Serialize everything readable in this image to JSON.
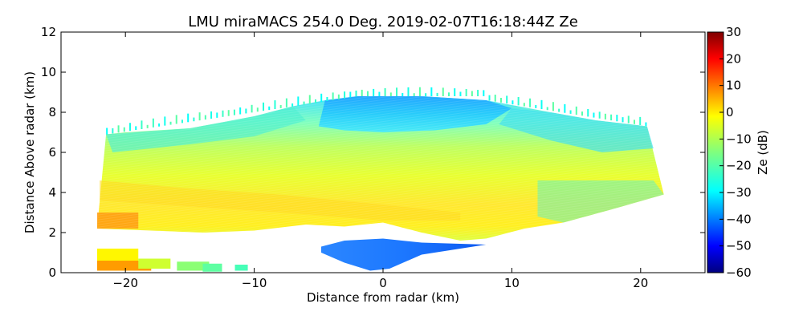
{
  "chart_data": {
    "type": "heatmap",
    "title": "LMU miraMACS 254.0 Deg. 2019-02-07T16:18:44Z  Ze",
    "xlabel": "Distance from radar (km)",
    "ylabel": "Distance Above radar  (km)",
    "xlim": [
      -25,
      25
    ],
    "ylim": [
      0,
      12
    ],
    "xticks": [
      -20,
      -10,
      0,
      10,
      20
    ],
    "xtick_labels": [
      "−20",
      "−10",
      "0",
      "10",
      "20"
    ],
    "yticks": [
      0,
      2,
      4,
      6,
      8,
      10,
      12
    ],
    "ytick_labels": [
      "0",
      "2",
      "4",
      "6",
      "8",
      "10",
      "12"
    ],
    "grid": false,
    "colorbar": {
      "label": "Ze (dB)",
      "range": [
        -60,
        30
      ],
      "colormap": "jet",
      "ticks": [
        30,
        20,
        10,
        0,
        -10,
        -20,
        -30,
        -40,
        -50,
        -60
      ],
      "tick_labels": [
        "30",
        "20",
        "10",
        "0",
        "−10",
        "−20",
        "−30",
        "−40",
        "−50",
        "−60"
      ]
    },
    "regions": [
      {
        "x_range": [
          -22,
          22
        ],
        "y_range": [
          2.0,
          8.8
        ],
        "ze_typical_dB": -15
      },
      {
        "x_range": [
          -22,
          5
        ],
        "y_range": [
          2.3,
          4.5
        ],
        "ze_typical_dB": -8
      },
      {
        "x_range": [
          -22,
          -20
        ],
        "y_range": [
          2.2,
          3.0
        ],
        "ze_typical_dB": 5
      },
      {
        "x_range": [
          -5,
          8
        ],
        "y_range": [
          7.0,
          8.8
        ],
        "ze_typical_dB": -32
      },
      {
        "x_range": [
          -5,
          8
        ],
        "y_range": [
          0.1,
          1.5
        ],
        "ze_typical_dB": -38
      },
      {
        "x_range": [
          -22,
          -14
        ],
        "y_range": [
          0.1,
          1.2
        ],
        "ze_typical_dB": -3
      }
    ]
  }
}
